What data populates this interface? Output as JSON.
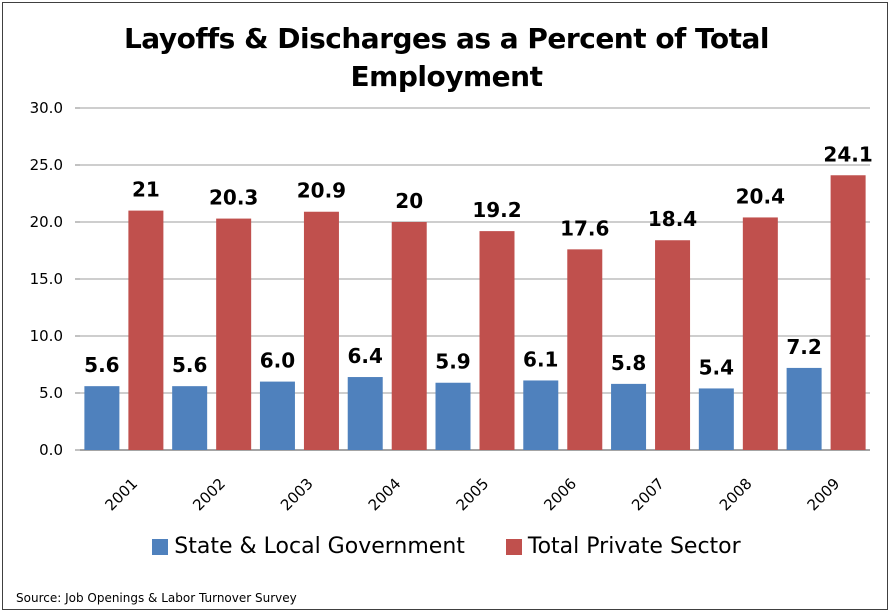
{
  "chart_data": {
    "type": "bar",
    "title": "Layoffs & Discharges as a Percent of Total Employment",
    "title_lines": [
      "Layoffs & Discharges as a Percent of Total",
      "Employment"
    ],
    "xlabel": "",
    "ylabel": "",
    "ylim": [
      0,
      30
    ],
    "yticks": [
      "0.0",
      "5.0",
      "10.0",
      "15.0",
      "20.0",
      "25.0",
      "30.0"
    ],
    "ytick_values": [
      0,
      5,
      10,
      15,
      20,
      25,
      30
    ],
    "grid": true,
    "legend_position": "bottom",
    "categories": [
      "2001",
      "2002",
      "2003",
      "2004",
      "2005",
      "2006",
      "2007",
      "2008",
      "2009"
    ],
    "series": [
      {
        "name": "State & Local Government",
        "color": "#4f81bd",
        "values": [
          5.6,
          5.6,
          6.0,
          6.4,
          5.9,
          6.1,
          5.8,
          5.4,
          7.2
        ],
        "labels": [
          "5.6",
          "5.6",
          "6.0",
          "6.4",
          "5.9",
          "6.1",
          "5.8",
          "5.4",
          "7.2"
        ]
      },
      {
        "name": "Total Private Sector",
        "color": "#c0504d",
        "values": [
          21,
          20.3,
          20.9,
          20,
          19.2,
          17.6,
          18.4,
          20.4,
          24.1
        ],
        "labels": [
          "21",
          "20.3",
          "20.9",
          "20",
          "19.2",
          "17.6",
          "18.4",
          "20.4",
          "24.1"
        ]
      }
    ],
    "source": "Source: Job Openings & Labor Turnover Survey"
  }
}
